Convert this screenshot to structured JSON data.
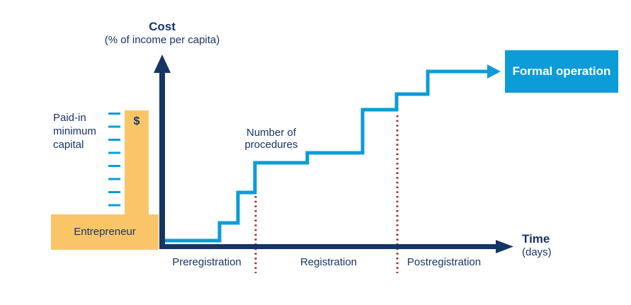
{
  "colors": {
    "navy": "#163567",
    "blue": "#0C9CD8",
    "orange": "#FAC568",
    "red_dotted": "#9C322C",
    "white": "#FFFFFF"
  },
  "axes": {
    "y_title": "Cost",
    "y_subtitle": "(% of income per capita)",
    "x_title": "Time",
    "x_subtitle": "(days)"
  },
  "labels": {
    "paid_in_minimum_capital": "Paid-in\nminimum\ncapital",
    "currency_symbol": "$",
    "entrepreneur": "Entrepreneur",
    "number_of_procedures": "Number of\nprocedures",
    "formal_operation": "Formal operation"
  },
  "phases": [
    {
      "label": "Preregistration"
    },
    {
      "label": "Registration"
    },
    {
      "label": "Postregistration"
    }
  ],
  "figure": {
    "type": "process-diagram",
    "staircase_step_count": 7,
    "capital_tick_count": 8
  }
}
